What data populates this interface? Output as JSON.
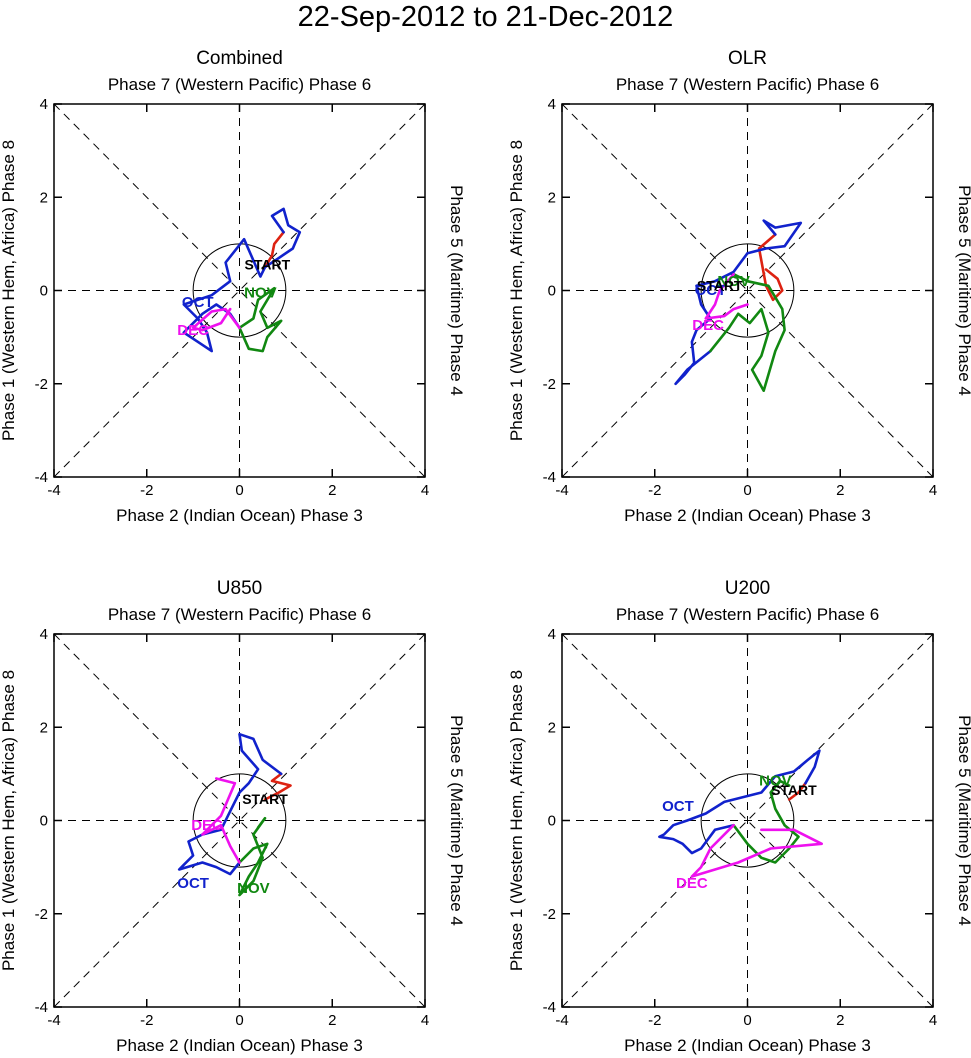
{
  "title": "22-Sep-2012 to 21-Dec-2012",
  "colors": {
    "sep": "#dd2211",
    "oct": "#1122cc",
    "nov": "#118811",
    "dec": "#ee11ee",
    "axis": "#000000"
  },
  "chart_data": [
    {
      "type": "line",
      "title": "Combined",
      "top_label": "Phase 7 (Western Pacific) Phase 6",
      "bottom_label": "Phase 2 (Indian Ocean) Phase 3",
      "left_label": "Phase 1 (Western Hem, Africa) Phase 8",
      "right_label": "Phase 5 (Maritime) Phase 4",
      "xlim": [
        -4,
        4
      ],
      "ylim": [
        -4,
        4
      ],
      "xticks": [
        -4,
        -2,
        0,
        2,
        4
      ],
      "yticks": [
        -4,
        -2,
        0,
        2,
        4
      ],
      "start_label": "START",
      "start_point": [
        0.6,
        0.45
      ],
      "series": [
        {
          "name": "Sep",
          "color_key": "sep",
          "points": [
            [
              0.55,
              0.5
            ],
            [
              0.7,
              0.75
            ],
            [
              0.75,
              1.0
            ],
            [
              0.95,
              1.25
            ]
          ]
        },
        {
          "name": "Oct",
          "color_key": "oct",
          "points": [
            [
              0.95,
              1.25
            ],
            [
              0.7,
              1.6
            ],
            [
              0.95,
              1.75
            ],
            [
              1.05,
              1.4
            ],
            [
              1.3,
              1.25
            ],
            [
              1.15,
              0.9
            ],
            [
              0.85,
              0.7
            ],
            [
              0.55,
              0.5
            ],
            [
              0.45,
              0.3
            ],
            [
              0.1,
              1.1
            ],
            [
              -0.3,
              0.6
            ],
            [
              -0.2,
              0.2
            ],
            [
              -0.6,
              -0.1
            ],
            [
              -1.2,
              -0.3
            ],
            [
              -0.9,
              -0.6
            ],
            [
              -0.7,
              -0.9
            ],
            [
              -0.6,
              -1.3
            ],
            [
              -0.9,
              -1.1
            ],
            [
              -1.2,
              -0.9
            ],
            [
              -0.8,
              -0.5
            ],
            [
              -0.5,
              -0.3
            ],
            [
              -0.2,
              -0.5
            ],
            [
              0.0,
              -0.8
            ]
          ]
        },
        {
          "name": "Nov",
          "color_key": "nov",
          "points": [
            [
              0.0,
              -0.8
            ],
            [
              0.3,
              -0.6
            ],
            [
              0.4,
              -0.2
            ],
            [
              0.75,
              0.05
            ],
            [
              0.45,
              -0.45
            ],
            [
              0.6,
              -0.8
            ],
            [
              0.9,
              -0.65
            ],
            [
              0.6,
              -1.0
            ],
            [
              0.5,
              -1.3
            ],
            [
              0.2,
              -1.25
            ],
            [
              0.0,
              -0.8
            ]
          ]
        },
        {
          "name": "Dec",
          "color_key": "dec",
          "points": [
            [
              0.0,
              -0.8
            ],
            [
              -0.3,
              -0.4
            ],
            [
              -0.6,
              -0.45
            ],
            [
              -1.0,
              -0.8
            ],
            [
              -0.8,
              -0.85
            ],
            [
              -0.4,
              -0.7
            ],
            [
              -0.2,
              -0.4
            ]
          ]
        }
      ],
      "month_labels": [
        {
          "text": "OCT",
          "color_key": "oct",
          "x": -0.9,
          "y": -0.35
        },
        {
          "text": "NOV",
          "color_key": "nov",
          "x": 0.45,
          "y": -0.15
        },
        {
          "text": "DEC",
          "color_key": "dec",
          "x": -1.0,
          "y": -0.95
        }
      ]
    },
    {
      "type": "line",
      "title": "OLR",
      "top_label": "Phase 7 (Western Pacific) Phase 6",
      "bottom_label": "Phase 2 (Indian Ocean) Phase 3",
      "left_label": "Phase 1 (Western Hem, Africa) Phase 8",
      "right_label": "Phase 5 (Maritime) Phase 4",
      "xlim": [
        -4,
        4
      ],
      "ylim": [
        -4,
        4
      ],
      "xticks": [
        -4,
        -2,
        0,
        2,
        4
      ],
      "yticks": [
        -4,
        -2,
        0,
        2,
        4
      ],
      "start_label": "START",
      "start_point": [
        -0.6,
        0.0
      ],
      "series": [
        {
          "name": "Sep",
          "color_key": "sep",
          "points": [
            [
              0.4,
              0.45
            ],
            [
              0.65,
              0.25
            ],
            [
              0.75,
              0.0
            ],
            [
              0.55,
              -0.2
            ],
            [
              0.4,
              0.1
            ],
            [
              0.25,
              0.9
            ],
            [
              0.6,
              1.2
            ]
          ]
        },
        {
          "name": "Oct",
          "color_key": "oct",
          "points": [
            [
              0.6,
              1.2
            ],
            [
              0.35,
              1.5
            ],
            [
              0.6,
              1.35
            ],
            [
              1.15,
              1.45
            ],
            [
              0.8,
              0.95
            ],
            [
              0.4,
              0.9
            ],
            [
              0.0,
              0.8
            ],
            [
              -0.3,
              0.4
            ],
            [
              -0.7,
              0.2
            ],
            [
              -1.1,
              0.1
            ],
            [
              -1.0,
              -0.3
            ],
            [
              -0.8,
              -0.6
            ],
            [
              -1.1,
              -0.85
            ],
            [
              -1.2,
              -1.1
            ],
            [
              -1.15,
              -1.55
            ],
            [
              -1.35,
              -1.8
            ],
            [
              -1.55,
              -2.0
            ],
            [
              -1.3,
              -1.7
            ],
            [
              -0.8,
              -1.3
            ]
          ]
        },
        {
          "name": "Nov",
          "color_key": "nov",
          "points": [
            [
              -0.8,
              -1.3
            ],
            [
              -0.4,
              -0.8
            ],
            [
              -0.2,
              -0.5
            ],
            [
              0.05,
              -0.7
            ],
            [
              0.3,
              -0.4
            ],
            [
              0.45,
              -0.9
            ],
            [
              0.3,
              -1.4
            ],
            [
              0.1,
              -1.7
            ],
            [
              0.35,
              -2.15
            ],
            [
              0.6,
              -1.3
            ],
            [
              0.8,
              -0.85
            ],
            [
              0.75,
              -0.4
            ],
            [
              0.45,
              0.1
            ],
            [
              0.0,
              0.2
            ],
            [
              -0.3,
              0.35
            ]
          ]
        },
        {
          "name": "Dec",
          "color_key": "dec",
          "points": [
            [
              -0.3,
              0.35
            ],
            [
              -0.6,
              0.0
            ],
            [
              -0.7,
              -0.3
            ],
            [
              -0.9,
              -0.6
            ],
            [
              -0.5,
              -0.55
            ],
            [
              -0.3,
              -0.4
            ],
            [
              0.0,
              -0.3
            ]
          ]
        }
      ],
      "month_labels": [
        {
          "text": "OCT",
          "color_key": "oct",
          "x": -0.8,
          "y": -0.1
        },
        {
          "text": "NOV",
          "color_key": "nov",
          "x": -0.3,
          "y": 0.1
        },
        {
          "text": "DEC",
          "color_key": "dec",
          "x": -0.85,
          "y": -0.85
        }
      ]
    },
    {
      "type": "line",
      "title": "U850",
      "top_label": "Phase 7 (Western Pacific) Phase 6",
      "bottom_label": "Phase 2 (Indian Ocean) Phase 3",
      "left_label": "Phase 1 (Western Hem, Africa) Phase 8",
      "right_label": "Phase 5 (Maritime) Phase 4",
      "xlim": [
        -4,
        4
      ],
      "ylim": [
        -4,
        4
      ],
      "xticks": [
        -4,
        -2,
        0,
        2,
        4
      ],
      "yticks": [
        -4,
        -2,
        0,
        2,
        4
      ],
      "start_label": "START",
      "start_point": [
        0.55,
        0.35
      ],
      "series": [
        {
          "name": "Sep",
          "color_key": "sep",
          "points": [
            [
              0.55,
              0.45
            ],
            [
              0.85,
              0.6
            ],
            [
              1.1,
              0.75
            ],
            [
              0.7,
              0.85
            ],
            [
              0.9,
              1.0
            ]
          ]
        },
        {
          "name": "Oct",
          "color_key": "oct",
          "points": [
            [
              0.9,
              1.0
            ],
            [
              0.5,
              1.3
            ],
            [
              0.3,
              1.75
            ],
            [
              0.0,
              1.85
            ],
            [
              0.05,
              1.5
            ],
            [
              0.4,
              1.1
            ],
            [
              0.2,
              0.8
            ],
            [
              0.0,
              0.6
            ],
            [
              -0.2,
              0.2
            ],
            [
              -0.4,
              -0.2
            ],
            [
              -0.8,
              -0.3
            ],
            [
              -1.1,
              -0.45
            ],
            [
              -1.0,
              -0.75
            ],
            [
              -1.2,
              -0.95
            ],
            [
              -1.3,
              -1.05
            ],
            [
              -0.8,
              -0.9
            ],
            [
              -0.5,
              -1.0
            ],
            [
              -0.2,
              -1.15
            ],
            [
              0.0,
              -0.9
            ]
          ]
        },
        {
          "name": "Nov",
          "color_key": "nov",
          "points": [
            [
              0.0,
              -0.9
            ],
            [
              0.3,
              -0.6
            ],
            [
              0.6,
              -0.5
            ],
            [
              0.4,
              -0.9
            ],
            [
              0.2,
              -1.2
            ],
            [
              0.0,
              -1.6
            ],
            [
              0.3,
              -1.3
            ],
            [
              0.5,
              -0.8
            ],
            [
              0.3,
              -0.3
            ],
            [
              0.55,
              0.05
            ],
            [
              0.4,
              -0.15
            ]
          ]
        },
        {
          "name": "Dec",
          "color_key": "dec",
          "points": [
            [
              0.0,
              -0.9
            ],
            [
              -0.2,
              -0.55
            ],
            [
              -0.4,
              -0.1
            ],
            [
              -0.8,
              -0.3
            ],
            [
              -0.4,
              0.1
            ],
            [
              -0.1,
              0.8
            ],
            [
              -0.5,
              0.9
            ]
          ]
        }
      ],
      "month_labels": [
        {
          "text": "OCT",
          "color_key": "oct",
          "x": -1.0,
          "y": -1.45
        },
        {
          "text": "NOV",
          "color_key": "nov",
          "x": 0.3,
          "y": -1.55
        },
        {
          "text": "DEC",
          "color_key": "dec",
          "x": -0.7,
          "y": -0.2
        }
      ]
    },
    {
      "type": "line",
      "title": "U200",
      "top_label": "Phase 7 (Western Pacific) Phase 6",
      "bottom_label": "Phase 2 (Indian Ocean) Phase 3",
      "left_label": "Phase 1 (Western Hem, Africa) Phase 8",
      "right_label": "Phase 5 (Maritime) Phase 4",
      "xlim": [
        -4,
        4
      ],
      "ylim": [
        -4,
        4
      ],
      "xticks": [
        -4,
        -2,
        0,
        2,
        4
      ],
      "yticks": [
        -4,
        -2,
        0,
        2,
        4
      ],
      "start_label": "START",
      "start_point": [
        1.0,
        0.55
      ],
      "series": [
        {
          "name": "Sep",
          "color_key": "sep",
          "points": [
            [
              0.9,
              0.45
            ],
            [
              1.1,
              0.6
            ],
            [
              1.25,
              0.8
            ]
          ]
        },
        {
          "name": "Oct",
          "color_key": "oct",
          "points": [
            [
              1.25,
              0.8
            ],
            [
              1.45,
              1.15
            ],
            [
              1.55,
              1.5
            ],
            [
              1.3,
              1.3
            ],
            [
              1.0,
              1.05
            ],
            [
              0.6,
              0.95
            ],
            [
              0.3,
              0.6
            ],
            [
              -0.5,
              0.4
            ],
            [
              -0.9,
              0.15
            ],
            [
              -1.3,
              0.0
            ],
            [
              -1.6,
              -0.1
            ],
            [
              -1.8,
              -0.3
            ],
            [
              -1.9,
              -0.35
            ],
            [
              -1.6,
              -0.4
            ],
            [
              -1.4,
              -0.5
            ],
            [
              -1.2,
              -0.7
            ],
            [
              -1.0,
              -0.6
            ],
            [
              -0.7,
              -0.2
            ],
            [
              -0.3,
              -0.1
            ]
          ]
        },
        {
          "name": "Nov",
          "color_key": "nov",
          "points": [
            [
              -0.3,
              -0.1
            ],
            [
              0.0,
              -0.5
            ],
            [
              0.3,
              -0.8
            ],
            [
              0.6,
              -0.9
            ],
            [
              0.9,
              -0.6
            ],
            [
              1.1,
              -0.35
            ],
            [
              0.8,
              -0.1
            ],
            [
              0.6,
              0.25
            ],
            [
              0.5,
              0.6
            ],
            [
              0.7,
              0.85
            ],
            [
              0.9,
              0.75
            ]
          ]
        },
        {
          "name": "Dec",
          "color_key": "dec",
          "points": [
            [
              -0.3,
              -0.1
            ],
            [
              -0.8,
              -0.6
            ],
            [
              -1.0,
              -1.0
            ],
            [
              -1.2,
              -1.2
            ],
            [
              -0.7,
              -1.05
            ],
            [
              -0.2,
              -0.9
            ],
            [
              0.5,
              -0.6
            ],
            [
              1.6,
              -0.5
            ],
            [
              1.0,
              -0.2
            ],
            [
              0.3,
              -0.2
            ]
          ]
        }
      ],
      "month_labels": [
        {
          "text": "OCT",
          "color_key": "oct",
          "x": -1.5,
          "y": 0.2
        },
        {
          "text": "NOV",
          "color_key": "nov",
          "x": 0.6,
          "y": 0.75
        },
        {
          "text": "DEC",
          "color_key": "dec",
          "x": -1.2,
          "y": -1.45
        }
      ]
    }
  ]
}
